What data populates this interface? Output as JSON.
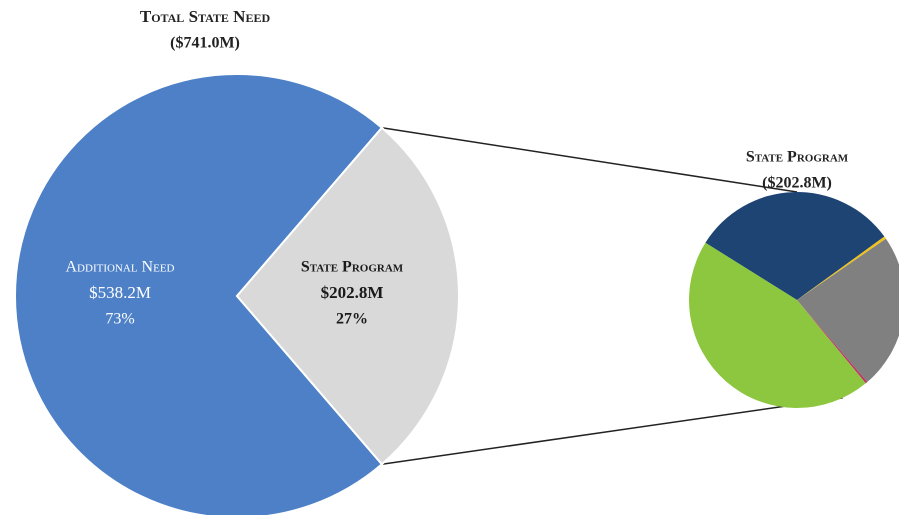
{
  "chart_data": [
    {
      "type": "pie",
      "title": "Total State Need",
      "subtitle": "($741.0M)",
      "categories": [
        "Additional Need",
        "State Program"
      ],
      "values": [
        538.2,
        202.8
      ],
      "value_labels": [
        "$538.2M",
        "$202.8M"
      ],
      "percent_labels": [
        "73%",
        "27%"
      ],
      "colors": [
        "#4d80c7",
        "#d9d9d9"
      ],
      "label_colors": [
        "#ffffff",
        "#1a1a1a"
      ]
    },
    {
      "type": "pie",
      "title": "State Program",
      "subtitle": "($202.8M)",
      "values": [
        63.1,
        0.8,
        47.3,
        0.6,
        91.0
      ],
      "colors": [
        "#1d4473",
        "#f2c318",
        "#808080",
        "#c2306b",
        "#8dc63f"
      ]
    }
  ]
}
